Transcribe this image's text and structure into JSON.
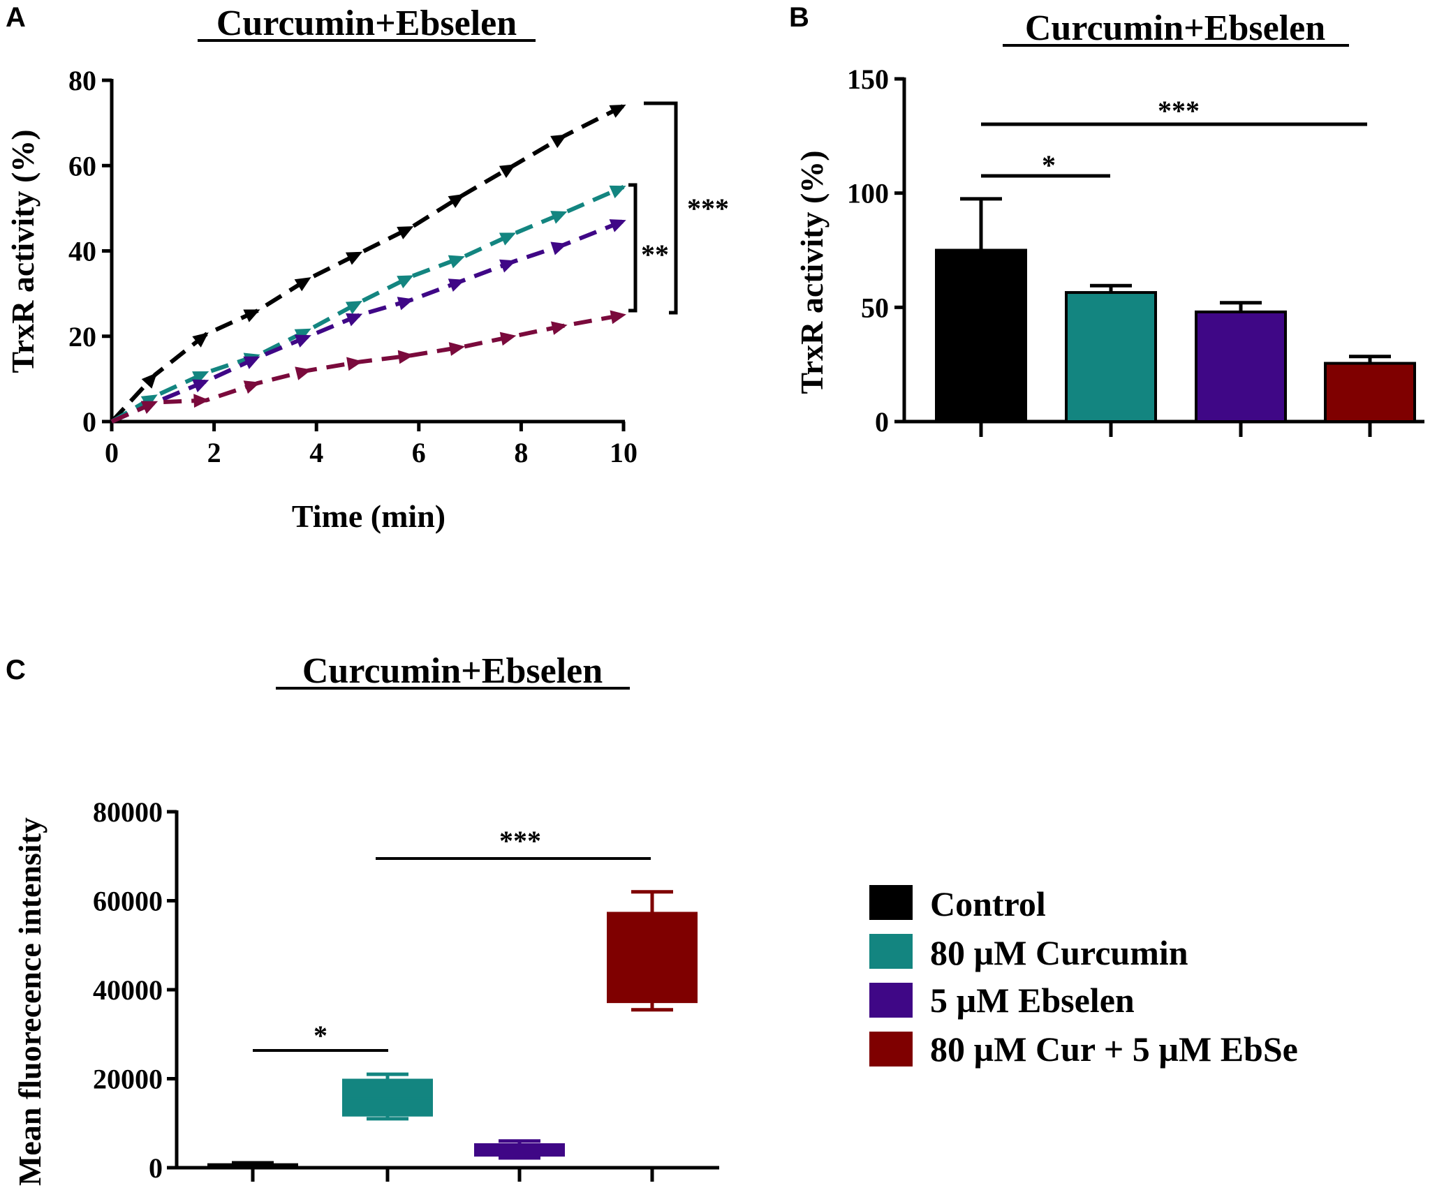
{
  "colors": {
    "control": "#000000",
    "curcumin": "#138580",
    "ebselen": "#3f0786",
    "combo": "#7f0000",
    "combo_line": "#7a0a3c"
  },
  "legend": [
    {
      "label": "Control",
      "color": "#000000"
    },
    {
      "label": "80 µM Curcumin",
      "color": "#138580"
    },
    {
      "label": "5 µM Ebselen",
      "color": "#3f0786"
    },
    {
      "label": "80 µM Cur + 5 µM EbSe",
      "color": "#7f0000"
    }
  ],
  "chart_data": [
    {
      "panel": "A",
      "type": "line",
      "title": "Curcumin+Ebselen",
      "xlabel": "Time (min)",
      "ylabel": "TrxR activity (%)",
      "xlim": [
        0,
        10
      ],
      "ylim": [
        0,
        80
      ],
      "xticks": [
        "0",
        "2",
        "4",
        "6",
        "8",
        "10"
      ],
      "yticks": [
        "0",
        "20",
        "40",
        "60",
        "80"
      ],
      "series": [
        {
          "name": "Control",
          "color": "#000000",
          "x": [
            0,
            0.85,
            1.85,
            2.85,
            3.85,
            4.85,
            5.85,
            6.85,
            7.85,
            8.85,
            10
          ],
          "y": [
            0,
            11,
            20.5,
            26,
            33.5,
            39.5,
            45.5,
            53,
            60,
            67,
            74
          ]
        },
        {
          "name": "80 µM Curcumin",
          "color": "#138580",
          "x": [
            0,
            0.85,
            1.85,
            2.85,
            3.85,
            4.85,
            5.85,
            6.85,
            7.85,
            8.85,
            10
          ],
          "y": [
            0,
            6,
            11.5,
            15.5,
            21.5,
            28,
            34,
            38.5,
            44,
            49,
            55
          ]
        },
        {
          "name": "5 µM Ebselen",
          "color": "#3f0786",
          "x": [
            0,
            0.85,
            1.85,
            2.85,
            3.85,
            4.85,
            5.85,
            6.85,
            7.85,
            8.85,
            10
          ],
          "y": [
            0,
            4.5,
            9.5,
            15,
            20,
            25,
            28.5,
            33,
            37.5,
            41.5,
            47
          ]
        },
        {
          "name": "80 µM Cur + 5 µM EbSe",
          "color": "#7a0a3c",
          "x": [
            0,
            0.85,
            1.85,
            2.85,
            3.85,
            4.85,
            5.85,
            6.85,
            7.85,
            8.85,
            10
          ],
          "y": [
            0,
            4.5,
            5,
            9,
            12,
            14,
            15.5,
            17.5,
            20,
            22.5,
            25
          ]
        }
      ],
      "annotations": [
        "**",
        "***"
      ]
    },
    {
      "panel": "B",
      "type": "bar",
      "title": "Curcumin+Ebselen",
      "ylabel": "TrxR activity (%)",
      "ylim": [
        0,
        150
      ],
      "yticks": [
        "0",
        "50",
        "100",
        "150"
      ],
      "categories": [
        "Control",
        "80 µM Curcumin",
        "5 µM Ebselen",
        "80 µM Cur + 5 µM EbSe"
      ],
      "values": [
        75,
        56.5,
        48,
        25.5
      ],
      "errors": [
        22.5,
        3,
        4,
        3
      ],
      "annotations": [
        "*",
        "***"
      ]
    },
    {
      "panel": "C",
      "type": "box",
      "title": "Curcumin+Ebselen",
      "ylabel": "Mean fluorecence intensity",
      "ylim": [
        0,
        80000
      ],
      "yticks": [
        "0",
        "20000",
        "40000",
        "60000",
        "80000"
      ],
      "categories": [
        "Control",
        "80 µM Curcumin",
        "5 µM Ebselen",
        "80 µM Cur + 5 µM EbSe"
      ],
      "boxes": [
        {
          "min": 0,
          "q1": 0,
          "median": 500,
          "q3": 1000,
          "max": 1100
        },
        {
          "min": 11000,
          "q1": 11500,
          "median": 15500,
          "q3": 20000,
          "max": 21000
        },
        {
          "min": 2200,
          "q1": 2500,
          "median": 3800,
          "q3": 5500,
          "max": 6000
        },
        {
          "min": 35500,
          "q1": 37000,
          "median": 47000,
          "q3": 57500,
          "max": 62000
        }
      ],
      "annotations": [
        "*",
        "***"
      ]
    }
  ]
}
